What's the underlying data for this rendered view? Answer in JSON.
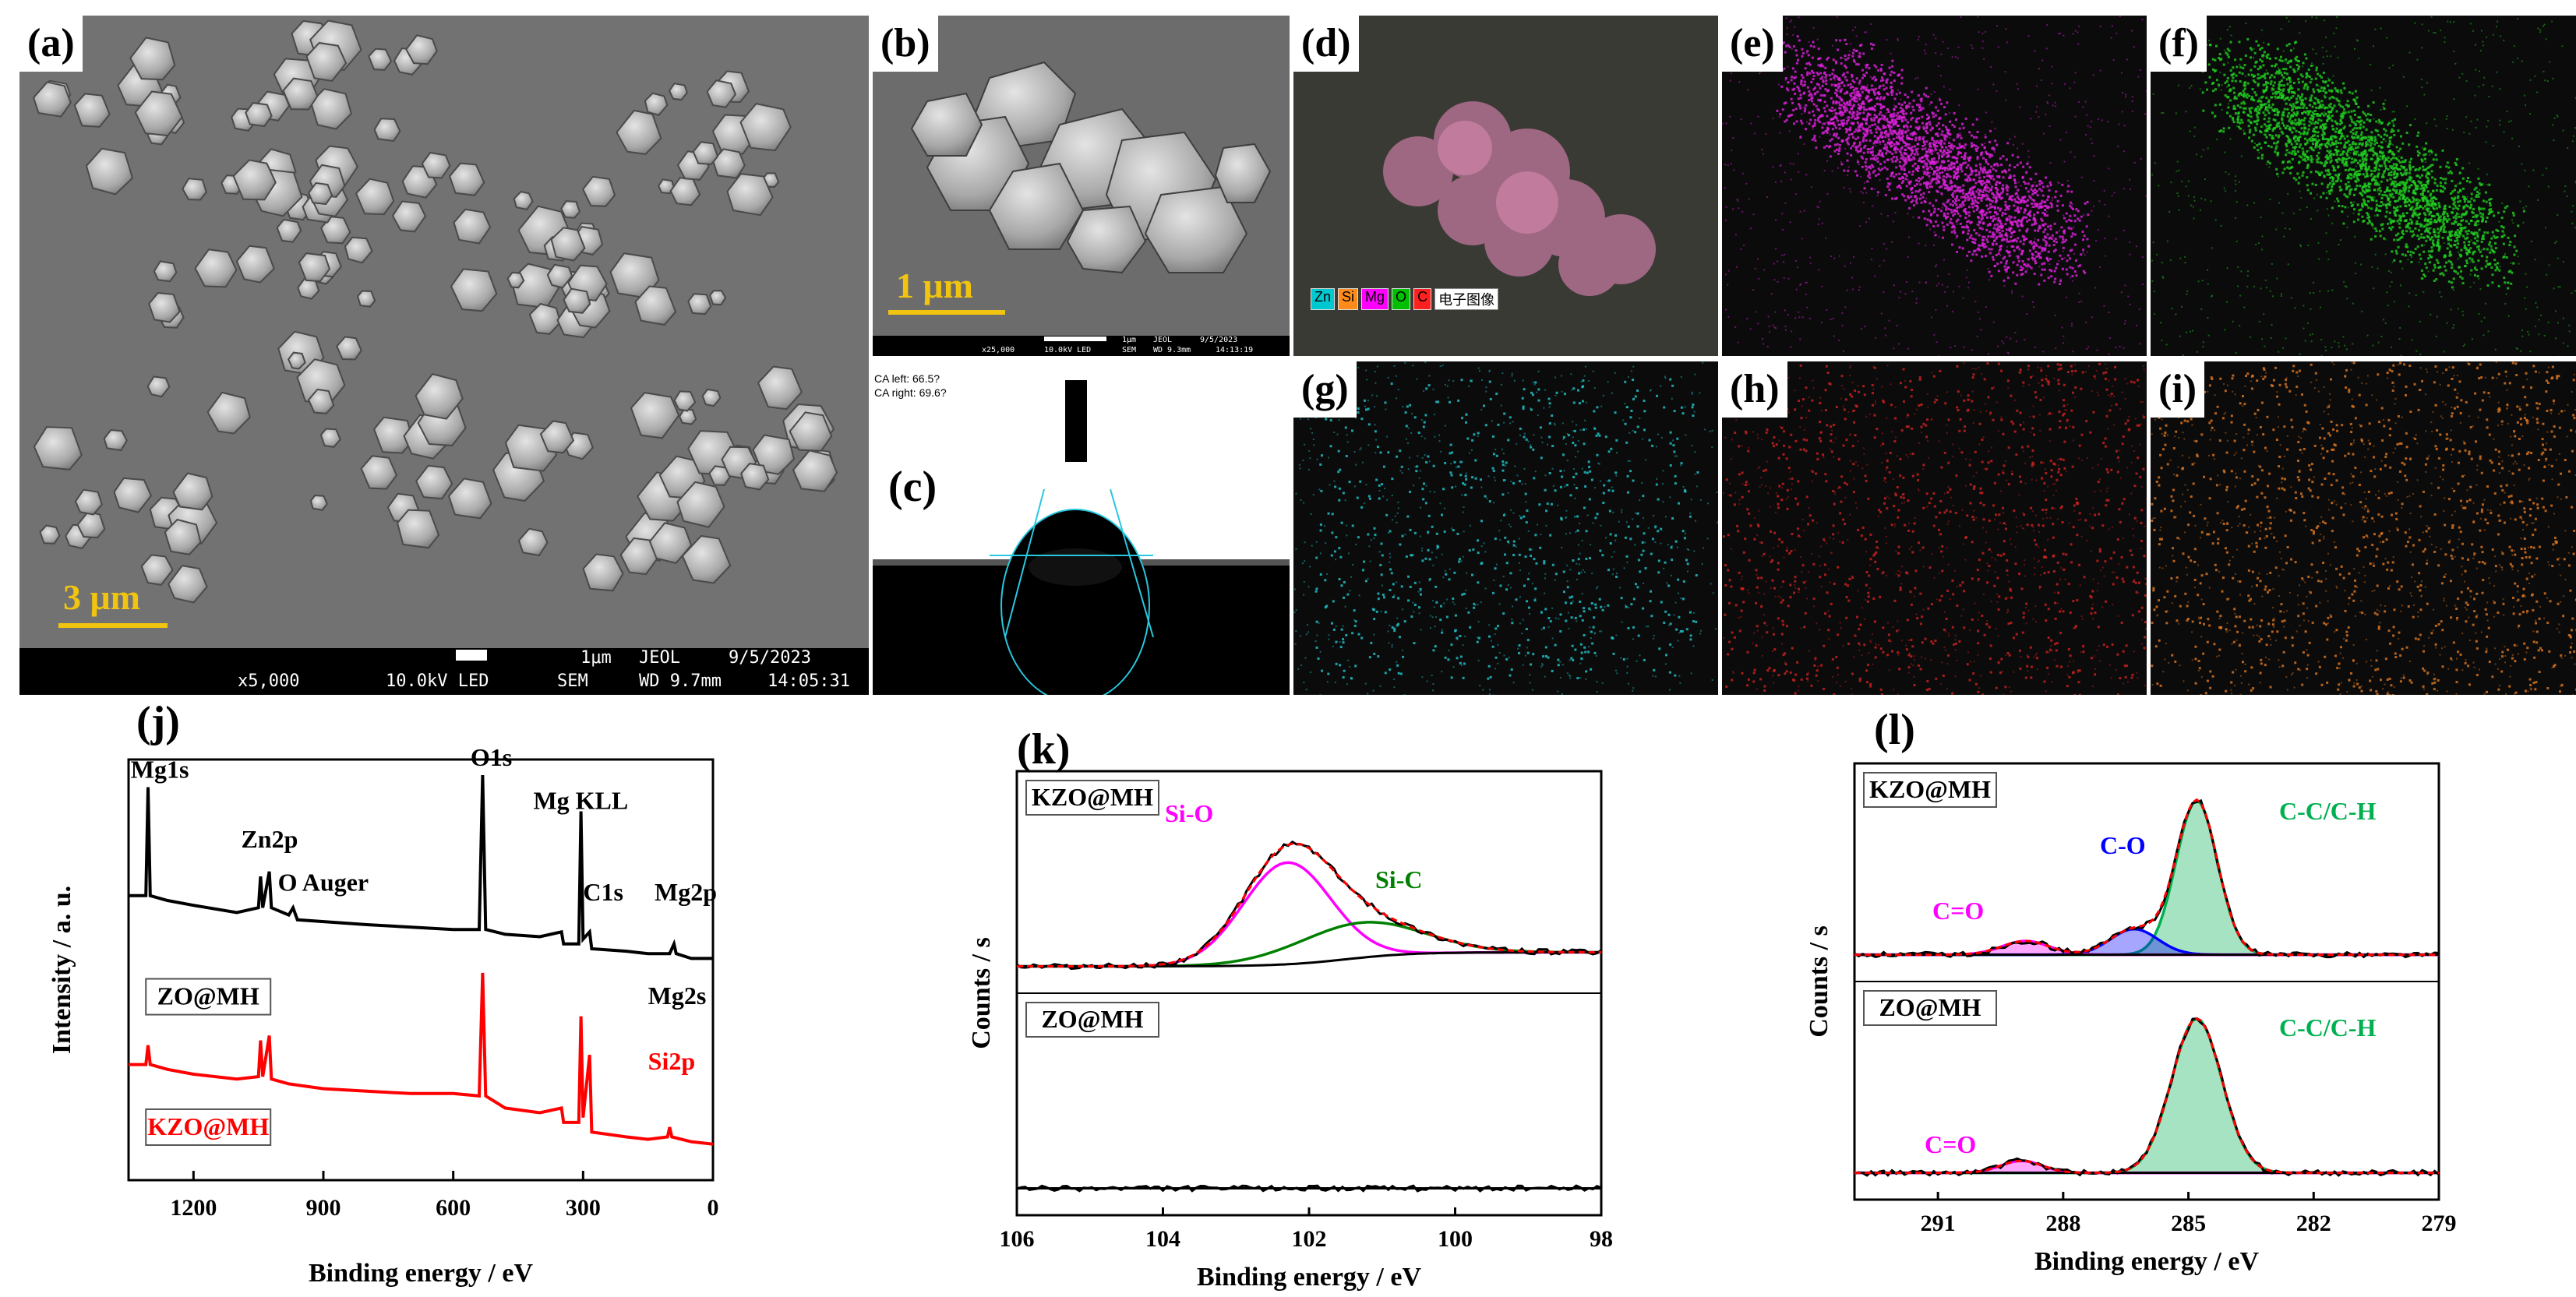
{
  "panels": {
    "a": {
      "label": "(a)",
      "scale": "3 μm",
      "footer": {
        "mag": "x5,000",
        "kv": "10.0kV LED",
        "sem": "SEM",
        "scale": "1μm",
        "jeol": "JEOL",
        "wd": "WD 9.7mm",
        "date": "9/5/2023",
        "time": "14:05:31"
      }
    },
    "b": {
      "label": "(b)",
      "scale": "1 μm",
      "footer": {
        "mag": "x25,000",
        "kv": "10.0kV LED",
        "sem": "SEM",
        "scale": "1μm",
        "jeol": "JEOL",
        "wd": "WD 9.3mm",
        "date": "9/5/2023",
        "time": "14:13:19"
      }
    },
    "c": {
      "label": "(c)",
      "ca_left": "CA left: 66.5?",
      "ca_right": "CA right: 69.6?"
    },
    "d": {
      "label": "(d)",
      "legend": [
        {
          "sym": "Zn",
          "color": "#00c8d0"
        },
        {
          "sym": "Si",
          "color": "#ff8c1a"
        },
        {
          "sym": "Mg",
          "color": "#ff00ff"
        },
        {
          "sym": "O",
          "color": "#00c000"
        },
        {
          "sym": "C",
          "color": "#ff2020"
        }
      ],
      "electron_image": "电子图像"
    },
    "e": {
      "label": "(e)",
      "color": "#e020e0"
    },
    "f": {
      "label": "(f)",
      "color": "#20d020"
    },
    "g": {
      "label": "(g)",
      "color": "#20c8d0"
    },
    "h": {
      "label": "(h)",
      "color": "#d02020"
    },
    "i": {
      "label": "(i)",
      "color": "#e07820"
    }
  },
  "chart_data": [
    {
      "id": "j",
      "label": "(j)",
      "type": "line",
      "xlabel": "Binding energy / eV",
      "ylabel": "Intensity / a. u.",
      "xlim": [
        1350,
        0
      ],
      "xticks": [
        1200,
        900,
        600,
        300,
        0
      ],
      "series": [
        {
          "name": "ZO@MH",
          "color": "#000000",
          "points": [
            [
              1350,
              1.0
            ],
            [
              1310,
              1.0
            ],
            [
              1305,
              1.45
            ],
            [
              1300,
              1.0
            ],
            [
              1260,
              0.98
            ],
            [
              1200,
              0.96
            ],
            [
              1100,
              0.93
            ],
            [
              1050,
              0.95
            ],
            [
              1045,
              1.08
            ],
            [
              1040,
              0.95
            ],
            [
              1025,
              1.1
            ],
            [
              1020,
              0.95
            ],
            [
              980,
              0.92
            ],
            [
              970,
              0.95
            ],
            [
              960,
              0.9
            ],
            [
              800,
              0.88
            ],
            [
              700,
              0.87
            ],
            [
              600,
              0.86
            ],
            [
              540,
              0.86
            ],
            [
              532,
              1.5
            ],
            [
              525,
              0.86
            ],
            [
              480,
              0.84
            ],
            [
              400,
              0.83
            ],
            [
              350,
              0.85
            ],
            [
              345,
              0.8
            ],
            [
              310,
              0.8
            ],
            [
              305,
              1.35
            ],
            [
              300,
              0.82
            ],
            [
              285,
              0.85
            ],
            [
              280,
              0.78
            ],
            [
              200,
              0.77
            ],
            [
              150,
              0.76
            ],
            [
              100,
              0.76
            ],
            [
              90,
              0.8
            ],
            [
              85,
              0.76
            ],
            [
              50,
              0.74
            ],
            [
              0,
              0.74
            ]
          ]
        },
        {
          "name": "KZO@MH",
          "color": "#ff0000",
          "points": [
            [
              1350,
              0.3
            ],
            [
              1310,
              0.3
            ],
            [
              1305,
              0.38
            ],
            [
              1300,
              0.3
            ],
            [
              1260,
              0.28
            ],
            [
              1200,
              0.26
            ],
            [
              1100,
              0.24
            ],
            [
              1050,
              0.25
            ],
            [
              1045,
              0.4
            ],
            [
              1040,
              0.25
            ],
            [
              1025,
              0.42
            ],
            [
              1020,
              0.24
            ],
            [
              980,
              0.22
            ],
            [
              900,
              0.2
            ],
            [
              800,
              0.19
            ],
            [
              700,
              0.18
            ],
            [
              600,
              0.18
            ],
            [
              540,
              0.17
            ],
            [
              532,
              0.68
            ],
            [
              525,
              0.17
            ],
            [
              480,
              0.12
            ],
            [
              400,
              0.1
            ],
            [
              350,
              0.12
            ],
            [
              345,
              0.06
            ],
            [
              310,
              0.06
            ],
            [
              305,
              0.5
            ],
            [
              300,
              0.08
            ],
            [
              285,
              0.34
            ],
            [
              280,
              0.02
            ],
            [
              200,
              0.0
            ],
            [
              150,
              -0.01
            ],
            [
              105,
              0.0
            ],
            [
              100,
              0.04
            ],
            [
              95,
              0.0
            ],
            [
              50,
              -0.02
            ],
            [
              0,
              -0.03
            ]
          ]
        }
      ],
      "annotations": [
        "Mg1s",
        "Zn2p",
        "O Auger",
        "O1s",
        "Mg KLL",
        "C1s",
        "Mg2p",
        "Mg2s",
        "Si2p"
      ]
    },
    {
      "id": "k",
      "label": "(k)",
      "type": "line",
      "xlabel": "Binding energy / eV",
      "ylabel": "Counts / s",
      "xlim": [
        106,
        98
      ],
      "xticks": [
        106,
        104,
        102,
        100,
        98
      ],
      "subplots": [
        {
          "name": "KZO@MH",
          "peaks": [
            {
              "name": "Si-O",
              "color": "#ff00ff",
              "center": 102.3,
              "height": 0.58,
              "width": 0.85
            },
            {
              "name": "Si-C",
              "color": "#008000",
              "center": 101.3,
              "height": 0.2,
              "width": 1.2
            }
          ]
        },
        {
          "name": "ZO@MH",
          "peaks": []
        }
      ]
    },
    {
      "id": "l",
      "label": "(l)",
      "type": "line",
      "xlabel": "Binding energy / eV",
      "ylabel": "Counts / s",
      "xlim": [
        293,
        279
      ],
      "xticks": [
        291,
        288,
        285,
        282,
        279
      ],
      "subplots": [
        {
          "name": "KZO@MH",
          "peaks": [
            {
              "name": "C-C/C-H",
              "color": "#00b050",
              "center": 284.8,
              "height": 0.9,
              "width": 0.7
            },
            {
              "name": "C-O",
              "color": "#0000ff",
              "center": 286.3,
              "height": 0.15,
              "width": 0.8
            },
            {
              "name": "C=O",
              "color": "#ff00ff",
              "center": 288.9,
              "height": 0.08,
              "width": 0.8
            }
          ]
        },
        {
          "name": "ZO@MH",
          "peaks": [
            {
              "name": "C-C/C-H",
              "color": "#00b050",
              "center": 284.8,
              "height": 0.9,
              "width": 0.85
            },
            {
              "name": "C=O",
              "color": "#ff00ff",
              "center": 289.0,
              "height": 0.07,
              "width": 0.7
            }
          ]
        }
      ]
    }
  ]
}
